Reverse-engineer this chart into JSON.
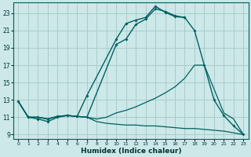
{
  "xlabel": "Humidex (Indice chaleur)",
  "xlim": [
    -0.5,
    23.5
  ],
  "ylim": [
    8.5,
    24.2
  ],
  "yticks": [
    9,
    11,
    13,
    15,
    17,
    19,
    21,
    23
  ],
  "xticks": [
    0,
    1,
    2,
    3,
    4,
    5,
    6,
    7,
    8,
    9,
    10,
    11,
    12,
    13,
    14,
    15,
    16,
    17,
    18,
    19,
    20,
    21,
    22,
    23
  ],
  "bg_color": "#cce8e8",
  "grid_color": "#aacccc",
  "line_color": "#006060",
  "curve1": {
    "x": [
      0,
      1,
      2,
      3,
      4,
      5,
      6,
      7,
      8,
      9,
      10,
      11,
      12,
      13,
      14,
      15,
      16,
      17,
      18,
      19,
      20,
      21,
      22,
      23
    ],
    "y": [
      12.8,
      11.0,
      11.0,
      10.8,
      11.1,
      11.2,
      11.1,
      11.0,
      null,
      null,
      19.4,
      20.0,
      21.7,
      22.3,
      23.5,
      23.2,
      22.7,
      22.5,
      21.0,
      17.0,
      13.0,
      11.2,
      10.0,
      9.0
    ],
    "gap_connect": [
      [
        7,
        11.0,
        10,
        19.4
      ]
    ]
  },
  "curve2": {
    "x": [
      0,
      1,
      2,
      3,
      4,
      5,
      6,
      7,
      8,
      9,
      10,
      11,
      12,
      13,
      14,
      15,
      16,
      17
    ],
    "y": [
      12.8,
      11.0,
      10.8,
      10.5,
      11.0,
      11.2,
      11.1,
      13.5,
      null,
      null,
      20.0,
      21.8,
      22.2,
      22.5,
      23.8,
      23.1,
      22.6,
      22.5
    ],
    "gap_connect": [
      [
        7,
        13.5,
        10,
        20.0
      ]
    ]
  },
  "curve3": {
    "x": [
      0,
      1,
      2,
      3,
      4,
      5,
      6,
      7,
      8,
      9,
      10,
      11,
      12,
      13,
      14,
      15,
      16,
      17,
      18,
      19,
      20,
      21,
      22,
      23
    ],
    "y": [
      12.8,
      11.0,
      11.0,
      10.8,
      11.1,
      11.2,
      11.1,
      11.0,
      10.5,
      10.3,
      10.2,
      10.1,
      10.1,
      10.0,
      10.0,
      9.9,
      9.8,
      9.7,
      9.7,
      9.6,
      9.5,
      9.4,
      9.2,
      9.0
    ]
  },
  "curve4": {
    "x": [
      0,
      1,
      2,
      3,
      4,
      5,
      6,
      7,
      8,
      9,
      10,
      11,
      12,
      13,
      14,
      15,
      16,
      17,
      18,
      19,
      21,
      22,
      23
    ],
    "y": [
      12.8,
      11.0,
      11.0,
      10.8,
      11.1,
      11.2,
      11.1,
      11.0,
      10.8,
      11.0,
      11.5,
      11.8,
      12.2,
      12.7,
      13.2,
      13.8,
      14.5,
      15.5,
      17.0,
      17.0,
      11.5,
      10.8,
      9.0
    ]
  }
}
